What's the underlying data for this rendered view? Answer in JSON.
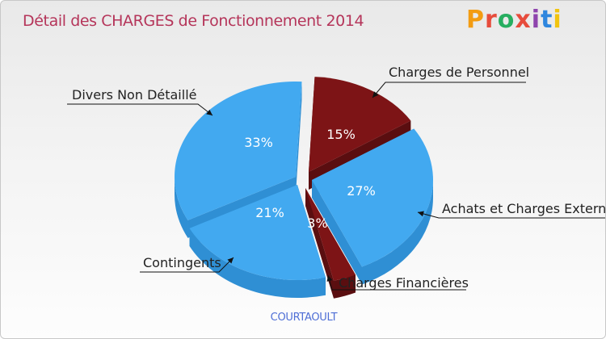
{
  "header": {
    "title": "Détail des CHARGES de Fonctionnement 2014",
    "logo_text": "Proxiti",
    "logo_colors": [
      "#f39c12",
      "#e74c3c",
      "#27ae60",
      "#e74c3c",
      "#8e44ad",
      "#2e86de",
      "#f1c40f"
    ]
  },
  "footer": {
    "commune": "COURTAOULT"
  },
  "chart_data": {
    "type": "pie",
    "title": "Détail des CHARGES de Fonctionnement 2014",
    "subtitle": "COURTAOULT",
    "slices": [
      {
        "label": "Charges de Personnel",
        "value": 15,
        "pct_label": "15%",
        "color": "#7d1416",
        "side": "#5a0e10"
      },
      {
        "label": "Achats et Charges Externes",
        "value": 27,
        "pct_label": "27%",
        "color": "#42a9f0",
        "side": "#2f8fd4"
      },
      {
        "label": "Charges Financières",
        "value": 3,
        "pct_label": "3%",
        "color": "#7d1416",
        "side": "#5a0e10"
      },
      {
        "label": "Contingents",
        "value": 21,
        "pct_label": "21%",
        "color": "#42a9f0",
        "side": "#2f8fd4"
      },
      {
        "label": "Divers Non Détaillé",
        "value": 33,
        "pct_label": "33%",
        "color": "#42a9f0",
        "side": "#2f8fd4"
      }
    ]
  }
}
